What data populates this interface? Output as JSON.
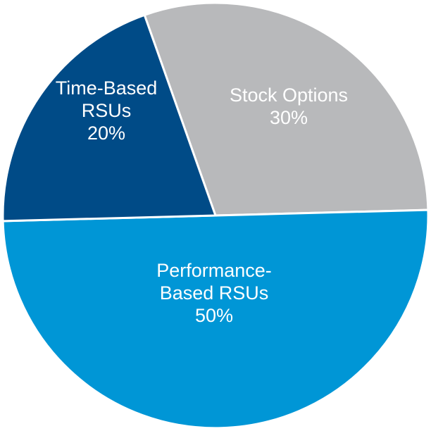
{
  "chart_data": {
    "type": "pie",
    "title": "",
    "slices": [
      {
        "label_lines": [
          "Stock Options"
        ],
        "value": 30,
        "value_label": "30%",
        "color": "#b8b9bb"
      },
      {
        "label_lines": [
          "Performance-",
          "Based RSUs"
        ],
        "value": 50,
        "value_label": "50%",
        "color": "#0096d6"
      },
      {
        "label_lines": [
          "Time-Based",
          "RSUs"
        ],
        "value": 20,
        "value_label": "20%",
        "color": "#004b87"
      }
    ],
    "legend": "none (labels drawn inside slices)"
  }
}
